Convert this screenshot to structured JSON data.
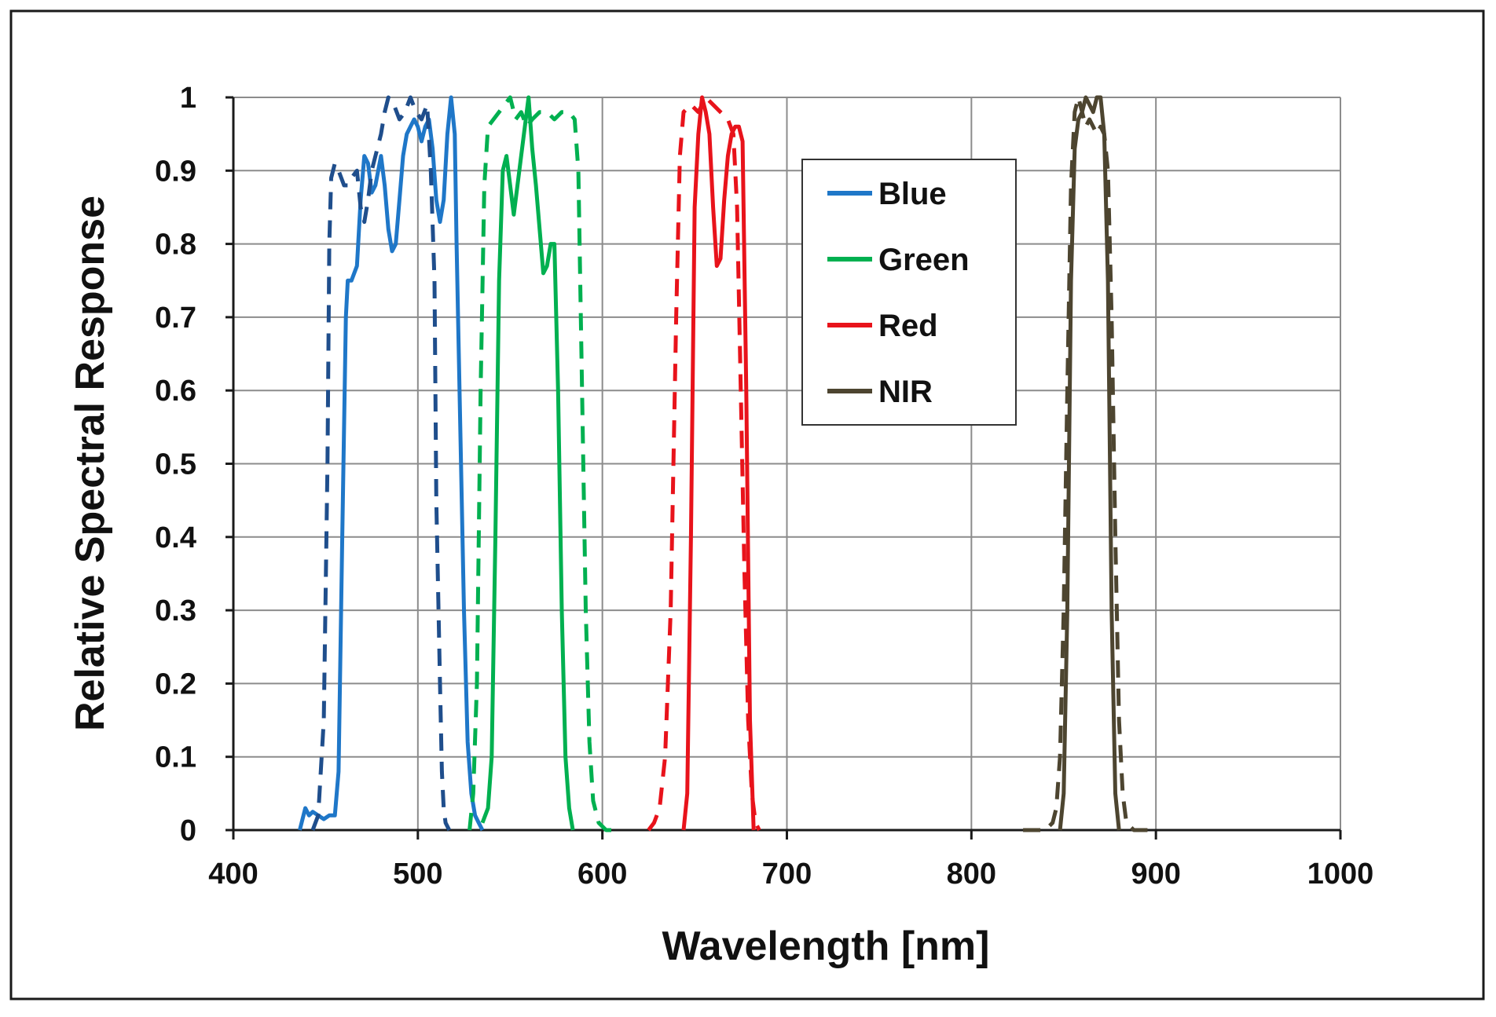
{
  "chart_data": {
    "type": "line",
    "title": "",
    "xlabel": "Wavelength [nm]",
    "ylabel": "Relative Spectral Response",
    "xlim": [
      400,
      1000
    ],
    "ylim": [
      0,
      1
    ],
    "x_ticks": [
      400,
      500,
      600,
      700,
      800,
      900,
      1000
    ],
    "x_tick_labels": [
      "400",
      "500",
      "600",
      "700",
      "800",
      "900",
      "1000"
    ],
    "y_ticks": [
      0,
      0.1,
      0.2,
      0.3,
      0.4,
      0.5,
      0.6,
      0.7,
      0.8,
      0.9,
      1
    ],
    "y_tick_labels": [
      "0",
      "0.1",
      "0.2",
      "0.3",
      "0.4",
      "0.5",
      "0.6",
      "0.7",
      "0.8",
      "0.9",
      "1"
    ],
    "grid": true,
    "legend_position": "upper-center-right",
    "legend": [
      {
        "label": "Blue",
        "color": "#1f77c8"
      },
      {
        "label": "Green",
        "color": "#00b050"
      },
      {
        "label": "Red",
        "color": "#e8131b"
      },
      {
        "label": "NIR",
        "color": "#4d4530"
      }
    ],
    "series": [
      {
        "name": "Blue",
        "style": "solid",
        "color": "#1f77c8",
        "x": [
          436,
          439,
          441,
          443,
          446,
          449,
          452,
          455,
          457,
          459,
          461,
          462,
          464,
          467,
          469,
          471,
          473,
          475,
          477,
          480,
          482,
          484,
          486,
          488,
          490,
          492,
          494,
          496,
          498,
          500,
          502,
          504,
          506,
          508,
          510,
          512,
          514,
          516,
          518,
          520,
          521,
          523,
          525,
          527,
          529,
          531,
          533,
          535
        ],
        "y": [
          0,
          0.03,
          0.02,
          0.025,
          0.02,
          0.015,
          0.02,
          0.02,
          0.08,
          0.4,
          0.7,
          0.75,
          0.75,
          0.77,
          0.86,
          0.92,
          0.91,
          0.87,
          0.88,
          0.92,
          0.88,
          0.82,
          0.79,
          0.8,
          0.86,
          0.92,
          0.95,
          0.96,
          0.97,
          0.96,
          0.94,
          0.96,
          0.97,
          0.93,
          0.86,
          0.83,
          0.86,
          0.95,
          1,
          0.95,
          0.8,
          0.55,
          0.3,
          0.12,
          0.05,
          0.02,
          0.01,
          0
        ]
      },
      {
        "name": "Blue (dashed)",
        "style": "dashed",
        "color": "#1f4e8c",
        "x": [
          443,
          446,
          449,
          451,
          452,
          453,
          455,
          457,
          460,
          462,
          464,
          467,
          469,
          471,
          473,
          475,
          478,
          480,
          482,
          484,
          487,
          490,
          493,
          496,
          499,
          502,
          505,
          507,
          509,
          510,
          512,
          513,
          514,
          515,
          517
        ],
        "y": [
          0,
          0.02,
          0.15,
          0.5,
          0.8,
          0.89,
          0.91,
          0.9,
          0.88,
          0.88,
          0.89,
          0.9,
          0.85,
          0.83,
          0.86,
          0.9,
          0.93,
          0.95,
          0.98,
          1,
          0.99,
          0.97,
          0.98,
          1,
          0.98,
          0.97,
          0.99,
          0.9,
          0.75,
          0.45,
          0.2,
          0.08,
          0.03,
          0.01,
          0
        ]
      },
      {
        "name": "Green",
        "style": "solid",
        "color": "#00b050",
        "x": [
          535,
          538,
          540,
          542,
          544,
          546,
          548,
          550,
          552,
          554,
          556,
          558,
          560,
          562,
          564,
          566,
          568,
          570,
          572,
          574,
          576,
          578,
          580,
          582,
          584
        ],
        "y": [
          0.01,
          0.03,
          0.1,
          0.4,
          0.75,
          0.9,
          0.92,
          0.88,
          0.84,
          0.88,
          0.92,
          0.96,
          1,
          0.93,
          0.88,
          0.82,
          0.76,
          0.77,
          0.8,
          0.8,
          0.6,
          0.3,
          0.1,
          0.03,
          0
        ]
      },
      {
        "name": "Green (dashed)",
        "style": "dashed",
        "color": "#00b050",
        "x": [
          528,
          530,
          532,
          534,
          536,
          538,
          541,
          544,
          547,
          550,
          553,
          556,
          559,
          562,
          566,
          570,
          574,
          578,
          582,
          585,
          587,
          589,
          591,
          593,
          595,
          598,
          602,
          608
        ],
        "y": [
          0,
          0.05,
          0.2,
          0.6,
          0.88,
          0.96,
          0.97,
          0.98,
          0.99,
          1,
          0.97,
          0.98,
          0.96,
          0.97,
          0.98,
          0.98,
          0.97,
          0.98,
          0.98,
          0.97,
          0.9,
          0.6,
          0.3,
          0.12,
          0.04,
          0.01,
          0,
          0
        ]
      },
      {
        "name": "Red",
        "style": "solid",
        "color": "#e8131b",
        "x": [
          644,
          646,
          648,
          650,
          652,
          654,
          656,
          658,
          660,
          662,
          664,
          666,
          668,
          670,
          672,
          674,
          676,
          678,
          680,
          682
        ],
        "y": [
          0,
          0.05,
          0.4,
          0.85,
          0.95,
          1,
          0.98,
          0.95,
          0.85,
          0.77,
          0.78,
          0.86,
          0.92,
          0.95,
          0.96,
          0.96,
          0.94,
          0.6,
          0.15,
          0
        ]
      },
      {
        "name": "Red (dashed)",
        "style": "dashed",
        "color": "#e8131b",
        "x": [
          625,
          628,
          631,
          634,
          637,
          640,
          642,
          644,
          648,
          652,
          656,
          660,
          664,
          668,
          671,
          673,
          675,
          677,
          679,
          681,
          683,
          685
        ],
        "y": [
          0,
          0.01,
          0.03,
          0.1,
          0.3,
          0.7,
          0.92,
          0.98,
          0.99,
          0.98,
          1,
          0.99,
          0.98,
          0.97,
          0.95,
          0.85,
          0.6,
          0.35,
          0.15,
          0.05,
          0.01,
          0
        ]
      },
      {
        "name": "NIR",
        "style": "solid",
        "color": "#4d4530",
        "x": [
          848,
          850,
          852,
          854,
          856,
          858,
          860,
          862,
          864,
          866,
          868,
          870,
          872,
          874,
          876,
          878,
          880
        ],
        "y": [
          0,
          0.05,
          0.3,
          0.75,
          0.93,
          0.97,
          0.98,
          1,
          0.99,
          0.98,
          1,
          1,
          0.95,
          0.75,
          0.3,
          0.05,
          0
        ]
      },
      {
        "name": "NIR (dashed)",
        "style": "dashed",
        "color": "#4d4530",
        "x": [
          828,
          835,
          840,
          844,
          846,
          848,
          850,
          852,
          854,
          856,
          858,
          860,
          862,
          864,
          866,
          868,
          870,
          872,
          874,
          876,
          878,
          880,
          882,
          884,
          888,
          895,
          900
        ],
        "y": [
          0,
          0,
          0,
          0.01,
          0.03,
          0.1,
          0.3,
          0.6,
          0.88,
          0.98,
          1,
          0.98,
          0.96,
          0.97,
          0.96,
          0.95,
          0.96,
          0.95,
          0.9,
          0.7,
          0.4,
          0.15,
          0.05,
          0.01,
          0,
          0,
          0
        ]
      }
    ]
  }
}
